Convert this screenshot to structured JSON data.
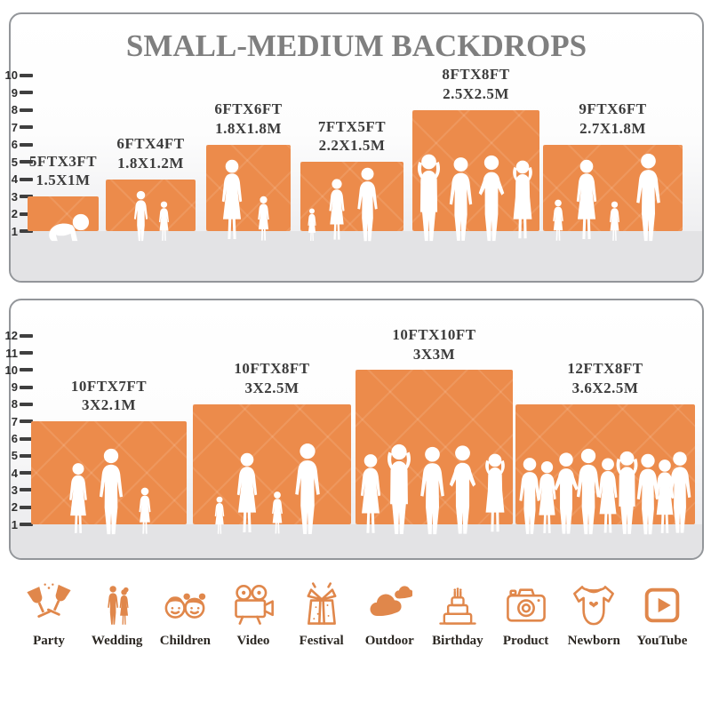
{
  "title": "SMALL-MEDIUM BACKDROPS",
  "colors": {
    "accent_orange": "#EC8B4B",
    "icon_orange": "#E0874B",
    "title_gray": "#7F7F7F",
    "label_dark": "#3C3C3C",
    "floor_gray": "#E3E3E5"
  },
  "panels": [
    {
      "name": "small-backdrops",
      "ruler": {
        "min": 1,
        "max": 10
      },
      "backdrops": [
        {
          "size_ft": "5FTX3FT",
          "size_m": "1.5X1M",
          "height_ft": 3,
          "people": "crawling-baby"
        },
        {
          "size_ft": "6FTX4FT",
          "size_m": "1.8X1.2M",
          "height_ft": 4,
          "people": "boy-and-girl"
        },
        {
          "size_ft": "6FTX6FT",
          "size_m": "1.8X1.8M",
          "height_ft": 6,
          "people": "mother-and-girl"
        },
        {
          "size_ft": "7FTX5FT",
          "size_m": "2.2X1.5M",
          "height_ft": 5,
          "people": "family-of-three"
        },
        {
          "size_ft": "8FTX8FT",
          "size_m": "2.5X2.5M",
          "height_ft": 8,
          "people": "four-adults"
        },
        {
          "size_ft": "9FTX6FT",
          "size_m": "2.7X1.8M",
          "height_ft": 6,
          "people": "family-of-four"
        }
      ]
    },
    {
      "name": "medium-backdrops",
      "ruler": {
        "min": 1,
        "max": 12
      },
      "backdrops": [
        {
          "size_ft": "10FTX7FT",
          "size_m": "3X2.1M",
          "height_ft": 7,
          "people": "family-of-three"
        },
        {
          "size_ft": "10FTX8FT",
          "size_m": "3X2.5M",
          "height_ft": 8,
          "people": "family-of-four"
        },
        {
          "size_ft": "10FTX10FT",
          "size_m": "3X3M",
          "height_ft": 10,
          "people": "five-adults"
        },
        {
          "size_ft": "12FTX8FT",
          "size_m": "3.6X2.5M",
          "height_ft": 8,
          "people": "group-crowd"
        }
      ]
    }
  ],
  "categories": [
    {
      "label": "Party",
      "icon": "party-glasses-icon"
    },
    {
      "label": "Wedding",
      "icon": "wedding-couple-icon"
    },
    {
      "label": "Children",
      "icon": "children-faces-icon"
    },
    {
      "label": "Video",
      "icon": "video-camera-icon"
    },
    {
      "label": "Festival",
      "icon": "gift-box-icon"
    },
    {
      "label": "Outdoor",
      "icon": "clouds-icon"
    },
    {
      "label": "Birthday",
      "icon": "birthday-cake-icon"
    },
    {
      "label": "Product",
      "icon": "photo-camera-icon"
    },
    {
      "label": "Newborn",
      "icon": "baby-onesie-icon"
    },
    {
      "label": "YouTube",
      "icon": "play-button-icon"
    }
  ]
}
